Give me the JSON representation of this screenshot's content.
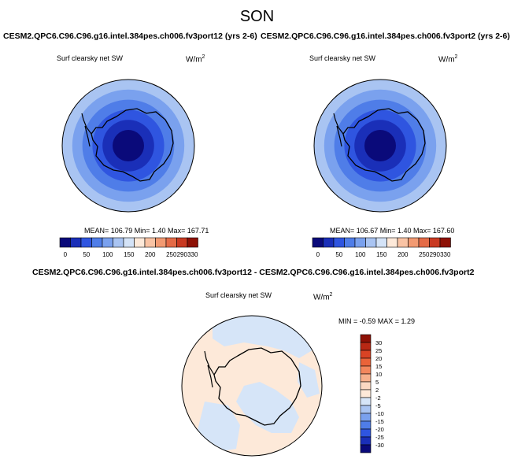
{
  "season": "SON",
  "panels": [
    {
      "title": "CESM2.QPC6.C96.C96.g16.intel.384pes.ch006.fv3port12 (yrs 2-6)",
      "variable": "Surf clearsky net SW",
      "units_base": "W/m",
      "units_exp": "2",
      "stats": "MEAN= 106.79  Min=   1.40  Max= 167.71"
    },
    {
      "title": "CESM2.QPC6.C96.C96.g16.intel.384pes.ch006.fv3port2 (yrs 2-6)",
      "variable": "Surf clearsky net SW",
      "units_base": "W/m",
      "units_exp": "2",
      "stats": "MEAN= 106.67  Min=   1.40  Max= 167.60"
    }
  ],
  "diff": {
    "title": "CESM2.QPC6.C96.C96.g16.intel.384pes.ch006.fv3port12 - CESM2.QPC6.C96.C96.g16.intel.384pes.ch006.fv3port2",
    "variable": "Surf clearsky net SW",
    "units_base": "W/m",
    "units_exp": "2",
    "stats": "MIN = -0.59 MAX =  1.29"
  },
  "colorbar_top": {
    "labels": [
      "0",
      "50",
      "100",
      "150",
      "200",
      "250",
      "290",
      "330"
    ],
    "colors": [
      "#0a0a7a",
      "#1a2fb8",
      "#2f55e0",
      "#4f7de8",
      "#7aa1ee",
      "#a9c4f2",
      "#d4e3f7",
      "#fde9d9",
      "#f9c3a4",
      "#f29a72",
      "#e46b47",
      "#c93a22",
      "#8e1106"
    ]
  },
  "colorbar_diff": {
    "labels": [
      "30",
      "25",
      "20",
      "15",
      "10",
      "5",
      "2",
      "-2",
      "-5",
      "-10",
      "-15",
      "-20",
      "-25",
      "-30"
    ],
    "colors": [
      "#8e1106",
      "#b82814",
      "#d94324",
      "#ea6339",
      "#f3875d",
      "#f7b08c",
      "#fbd8c2",
      "#fde9d9",
      "#d6e5f8",
      "#a9c4f2",
      "#7aa1ee",
      "#4f7de8",
      "#2f55e0",
      "#1a2fb8",
      "#0a0a7a"
    ]
  },
  "polar_map": {
    "rings": [
      "#a9c4f2",
      "#7aa1ee",
      "#4f7de8",
      "#2f55e0",
      "#1a2fb8",
      "#0a0a7a"
    ]
  },
  "diff_map": {
    "positive_color": "#fde9d9",
    "negative_color": "#d6e5f8"
  }
}
